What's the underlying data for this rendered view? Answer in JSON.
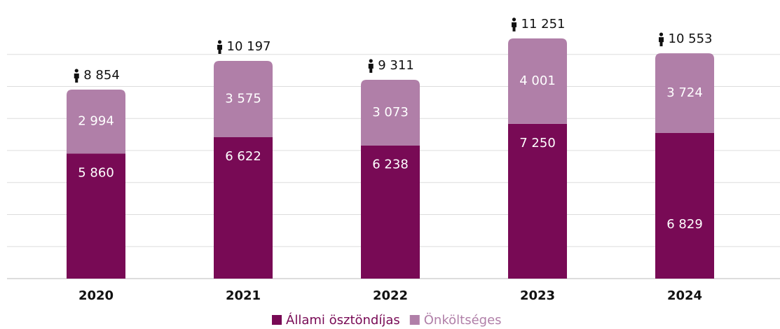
{
  "chart_data": {
    "type": "stacked_bar",
    "categories": [
      "2020",
      "2021",
      "2022",
      "2023",
      "2024"
    ],
    "series": [
      {
        "name": "Állami ösztöndíjas",
        "color": "#780a55",
        "values": [
          5860,
          6622,
          6238,
          7250,
          6829
        ],
        "value_labels": [
          "5 860",
          "6 622",
          "6 238",
          "7 250",
          "6 829"
        ]
      },
      {
        "name": "Önköltséges",
        "color": "#b07fa8",
        "values": [
          2994,
          3575,
          3073,
          4001,
          3724
        ],
        "value_labels": [
          "2 994",
          "3 575",
          "3 073",
          "4 001",
          "3 724"
        ]
      }
    ],
    "totals": {
      "values": [
        8854,
        10197,
        9311,
        11251,
        10553
      ],
      "value_labels": [
        "8 854",
        "10 197",
        "9 311",
        "11 251",
        "10 553"
      ]
    },
    "ylim": [
      0,
      12000
    ],
    "yticks": [
      0,
      1500,
      3000,
      4500,
      6000,
      7500,
      9000,
      10500
    ],
    "grid": true
  }
}
